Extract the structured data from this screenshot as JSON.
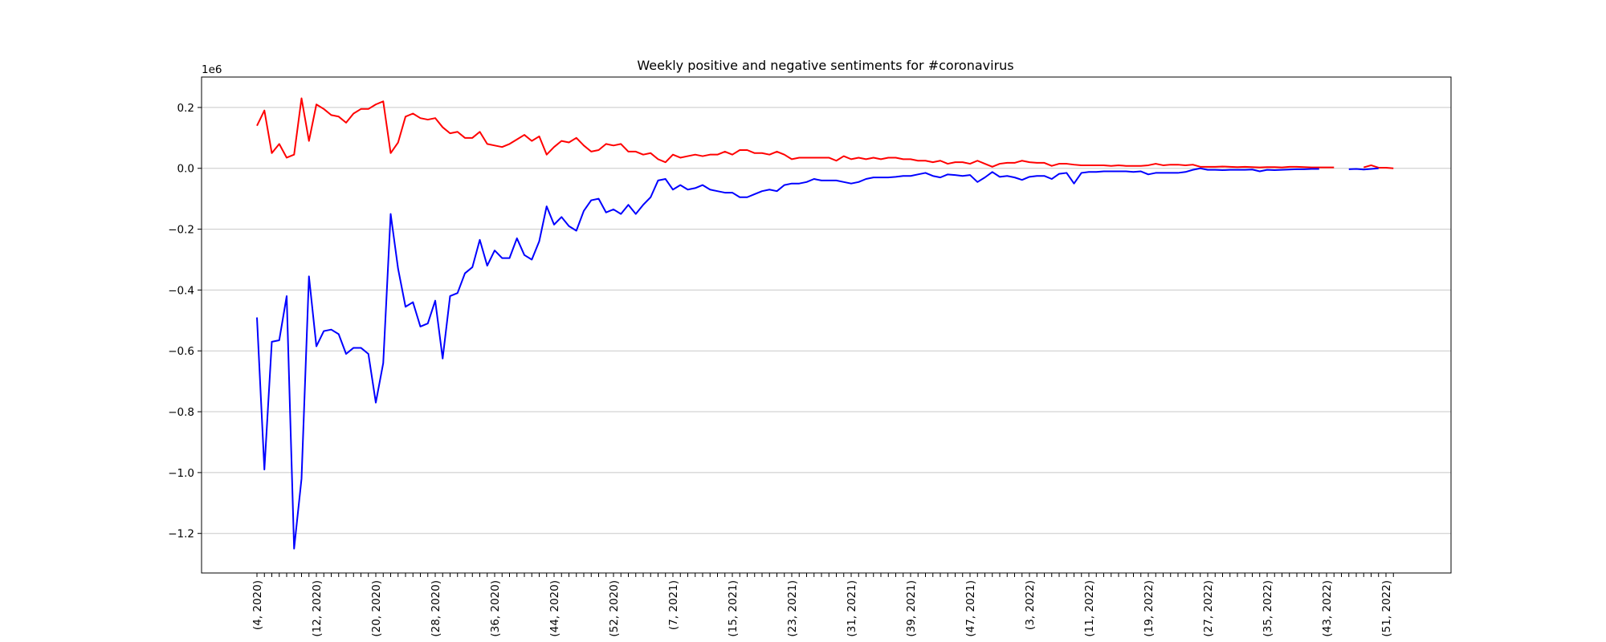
{
  "chart_data": {
    "type": "line",
    "title": "Weekly positive and negative sentiments for #coronavirus",
    "xlabel": "",
    "ylabel": "",
    "y_offset_label": "1e6",
    "y_scale_factor": 1000000,
    "ylim": [
      -1.33,
      0.3
    ],
    "y_ticks": [
      0.2,
      0.0,
      -0.2,
      -0.4,
      -0.6,
      -0.8,
      -1.0,
      -1.2
    ],
    "y_tick_labels": [
      "0.2",
      "0.0",
      "−0.2",
      "−0.4",
      "−0.6",
      "−0.8",
      "−1.0",
      "−1.2"
    ],
    "grid": "horizontal",
    "x_tick_labels": [
      {
        "index": 0,
        "label": "(4, 2020)"
      },
      {
        "index": 8,
        "label": "(12, 2020)"
      },
      {
        "index": 16,
        "label": "(20, 2020)"
      },
      {
        "index": 24,
        "label": "(28, 2020)"
      },
      {
        "index": 32,
        "label": "(36, 2020)"
      },
      {
        "index": 40,
        "label": "(44, 2020)"
      },
      {
        "index": 48,
        "label": "(52, 2020)"
      },
      {
        "index": 56,
        "label": "(7, 2021)"
      },
      {
        "index": 64,
        "label": "(15, 2021)"
      },
      {
        "index": 72,
        "label": "(23, 2021)"
      },
      {
        "index": 80,
        "label": "(31, 2021)"
      },
      {
        "index": 88,
        "label": "(39, 2021)"
      },
      {
        "index": 96,
        "label": "(47, 2021)"
      },
      {
        "index": 104,
        "label": "(3, 2022)"
      },
      {
        "index": 112,
        "label": "(11, 2022)"
      },
      {
        "index": 120,
        "label": "(19, 2022)"
      },
      {
        "index": 128,
        "label": "(27, 2022)"
      },
      {
        "index": 136,
        "label": "(35, 2022)"
      },
      {
        "index": 144,
        "label": "(43, 2022)"
      },
      {
        "index": 152,
        "label": "(51, 2022)"
      }
    ],
    "x_count": 154,
    "series": [
      {
        "color": "#ff0000",
        "values": [
          0.14,
          0.19,
          0.05,
          0.08,
          0.035,
          0.045,
          0.23,
          0.09,
          0.21,
          0.195,
          0.175,
          0.17,
          0.15,
          0.18,
          0.195,
          0.195,
          0.21,
          0.22,
          0.05,
          0.085,
          0.17,
          0.18,
          0.165,
          0.16,
          0.165,
          0.135,
          0.115,
          0.12,
          0.1,
          0.1,
          0.12,
          0.08,
          0.075,
          0.07,
          0.08,
          0.095,
          0.11,
          0.09,
          0.105,
          0.045,
          0.07,
          0.09,
          0.085,
          0.1,
          0.075,
          0.055,
          0.06,
          0.08,
          0.075,
          0.08,
          0.055,
          0.055,
          0.045,
          0.05,
          0.03,
          0.02,
          0.045,
          0.035,
          0.04,
          0.045,
          0.04,
          0.045,
          0.045,
          0.055,
          0.045,
          0.06,
          0.06,
          0.05,
          0.05,
          0.045,
          0.055,
          0.045,
          0.03,
          0.035,
          0.035,
          0.035,
          0.035,
          0.035,
          0.025,
          0.04,
          0.03,
          0.035,
          0.03,
          0.035,
          0.03,
          0.035,
          0.035,
          0.03,
          0.03,
          0.025,
          0.025,
          0.02,
          0.025,
          0.015,
          0.02,
          0.02,
          0.015,
          0.025,
          0.015,
          0.005,
          0.015,
          0.018,
          0.018,
          0.025,
          0.02,
          0.018,
          0.018,
          0.008,
          0.015,
          0.015,
          0.012,
          0.01,
          0.01,
          0.01,
          0.01,
          0.008,
          0.01,
          0.008,
          0.008,
          0.008,
          0.01,
          0.015,
          0.01,
          0.012,
          0.012,
          0.01,
          0.012,
          0.005,
          0.005,
          0.005,
          0.006,
          0.005,
          0.004,
          0.005,
          0.004,
          0.003,
          0.004,
          0.004,
          0.003,
          0.005,
          0.005,
          0.004,
          0.003,
          0.003,
          0.003,
          0.003,
          null,
          null,
          null,
          0.003,
          0.01,
          0.002,
          0.002,
          0.0
        ]
      },
      {
        "color": "#0000ff",
        "values": [
          -0.49,
          -0.99,
          -0.57,
          -0.565,
          -0.42,
          -1.25,
          -1.02,
          -0.355,
          -0.585,
          -0.535,
          -0.53,
          -0.545,
          -0.61,
          -0.59,
          -0.59,
          -0.61,
          -0.77,
          -0.64,
          -0.15,
          -0.33,
          -0.455,
          -0.44,
          -0.52,
          -0.51,
          -0.435,
          -0.625,
          -0.42,
          -0.41,
          -0.345,
          -0.325,
          -0.235,
          -0.32,
          -0.27,
          -0.295,
          -0.295,
          -0.23,
          -0.285,
          -0.3,
          -0.24,
          -0.125,
          -0.185,
          -0.16,
          -0.19,
          -0.205,
          -0.14,
          -0.105,
          -0.1,
          -0.145,
          -0.135,
          -0.15,
          -0.12,
          -0.15,
          -0.12,
          -0.095,
          -0.04,
          -0.035,
          -0.07,
          -0.055,
          -0.07,
          -0.065,
          -0.055,
          -0.07,
          -0.075,
          -0.08,
          -0.08,
          -0.095,
          -0.095,
          -0.085,
          -0.075,
          -0.07,
          -0.075,
          -0.055,
          -0.05,
          -0.05,
          -0.045,
          -0.035,
          -0.04,
          -0.04,
          -0.04,
          -0.045,
          -0.05,
          -0.045,
          -0.035,
          -0.03,
          -0.03,
          -0.03,
          -0.028,
          -0.025,
          -0.025,
          -0.02,
          -0.015,
          -0.025,
          -0.03,
          -0.02,
          -0.022,
          -0.025,
          -0.022,
          -0.045,
          -0.03,
          -0.012,
          -0.028,
          -0.025,
          -0.03,
          -0.038,
          -0.028,
          -0.025,
          -0.025,
          -0.035,
          -0.018,
          -0.015,
          -0.05,
          -0.015,
          -0.012,
          -0.012,
          -0.01,
          -0.01,
          -0.01,
          -0.01,
          -0.012,
          -0.01,
          -0.02,
          -0.015,
          -0.015,
          -0.015,
          -0.015,
          -0.012,
          -0.005,
          0.0,
          -0.005,
          -0.005,
          -0.006,
          -0.005,
          -0.005,
          -0.005,
          -0.004,
          -0.01,
          -0.005,
          -0.006,
          -0.005,
          -0.004,
          -0.003,
          -0.003,
          -0.002,
          -0.002,
          null,
          null,
          null,
          -0.003,
          -0.002,
          -0.004,
          -0.002,
          0.0
        ]
      }
    ]
  }
}
